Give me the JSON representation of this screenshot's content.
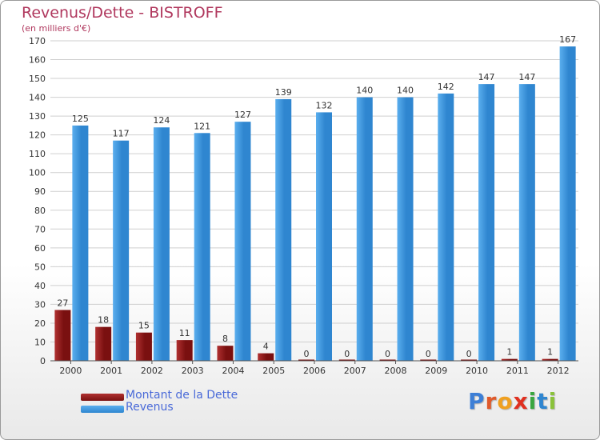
{
  "title": "Revenus/Dette - BISTROFF",
  "subtitle": "(en milliers d'€)",
  "colors": {
    "debt": "#7a1010",
    "debt_light": "#b03030",
    "revenue": "#2f86d0",
    "revenue_light": "#5aaeee",
    "title": "#b0385e",
    "legend_text": "#4a6ad8",
    "grid": "#cfcfcf"
  },
  "chart_data": {
    "type": "bar",
    "categories": [
      "2000",
      "2001",
      "2002",
      "2003",
      "2004",
      "2005",
      "2006",
      "2007",
      "2008",
      "2009",
      "2010",
      "2011",
      "2012"
    ],
    "series": [
      {
        "name": "Montant de la Dette",
        "values": [
          27,
          18,
          15,
          11,
          8,
          4,
          0,
          0,
          0,
          0,
          0,
          1,
          1
        ]
      },
      {
        "name": "Revenus",
        "values": [
          125,
          117,
          124,
          121,
          127,
          139,
          132,
          140,
          140,
          142,
          147,
          147,
          167
        ]
      }
    ],
    "ylim": [
      0,
      170
    ],
    "yticks": [
      0,
      10,
      20,
      30,
      40,
      50,
      60,
      70,
      80,
      90,
      100,
      110,
      120,
      130,
      140,
      150,
      160,
      170
    ],
    "grid": true,
    "legend_position": "bottom-left"
  },
  "legend": {
    "debt_label": "Montant de la Dette",
    "revenue_label": "Revenus"
  },
  "logo": {
    "letters": [
      "P",
      "r",
      "o",
      "x",
      "i",
      "t",
      "i"
    ],
    "colors": [
      "#3d7fd6",
      "#e05a2b",
      "#f0a020",
      "#e03020",
      "#3aa640",
      "#2f86d0",
      "#8ac23a"
    ]
  }
}
